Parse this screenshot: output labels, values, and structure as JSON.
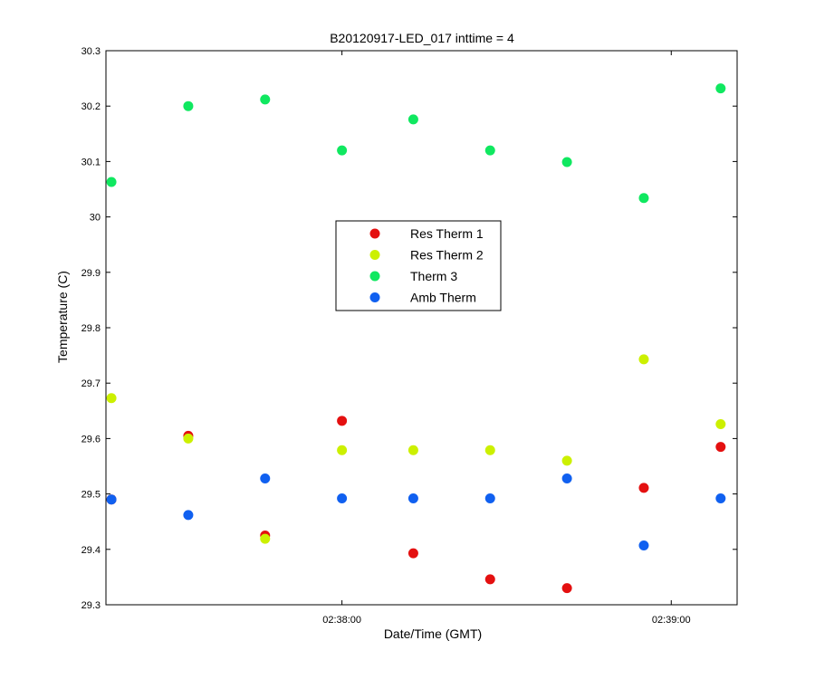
{
  "chart_data": {
    "type": "scatter",
    "title": "B20120917-LED_017 inttime = 4",
    "xlabel": "Date/Time (GMT)",
    "ylabel": "Temperature (C)",
    "ylim": [
      29.3,
      30.3
    ],
    "xlim": [
      "02:37:17",
      "02:39:12"
    ],
    "yticks": [
      29.3,
      29.4,
      29.5,
      29.6,
      29.7,
      29.8,
      29.9,
      30,
      30.1,
      30.2,
      30.3
    ],
    "ytick_labels": [
      "29.3",
      "29.4",
      "29.5",
      "29.6",
      "29.7",
      "29.8",
      "29.9",
      "30",
      "30.1",
      "30.2",
      "30.3"
    ],
    "xticks": [
      "02:38:00",
      "02:39:00"
    ],
    "xtick_labels": [
      "02:38:00",
      "02:39:00"
    ],
    "x": [
      "02:37:18",
      "02:37:32",
      "02:37:46",
      "02:38:00",
      "02:38:13",
      "02:38:27",
      "02:38:41",
      "02:38:55",
      "02:39:09"
    ],
    "grid": false,
    "legend_position": "center",
    "series": [
      {
        "name": "Res Therm 1",
        "color": "#e41010",
        "values": [
          29.49,
          29.605,
          29.425,
          29.632,
          29.393,
          29.346,
          29.33,
          29.511,
          29.585
        ]
      },
      {
        "name": "Res Therm 2",
        "color": "#ccf000",
        "values": [
          29.673,
          29.6,
          29.419,
          29.579,
          29.579,
          29.579,
          29.56,
          29.743,
          29.626
        ]
      },
      {
        "name": "Therm 3",
        "color": "#10e860",
        "values": [
          30.063,
          30.2,
          30.212,
          30.12,
          30.176,
          30.12,
          30.099,
          30.034,
          30.232
        ]
      },
      {
        "name": "Amb Therm",
        "color": "#1060f0",
        "values": [
          29.49,
          29.462,
          29.528,
          29.492,
          29.492,
          29.492,
          29.528,
          29.407,
          29.492
        ]
      }
    ]
  }
}
